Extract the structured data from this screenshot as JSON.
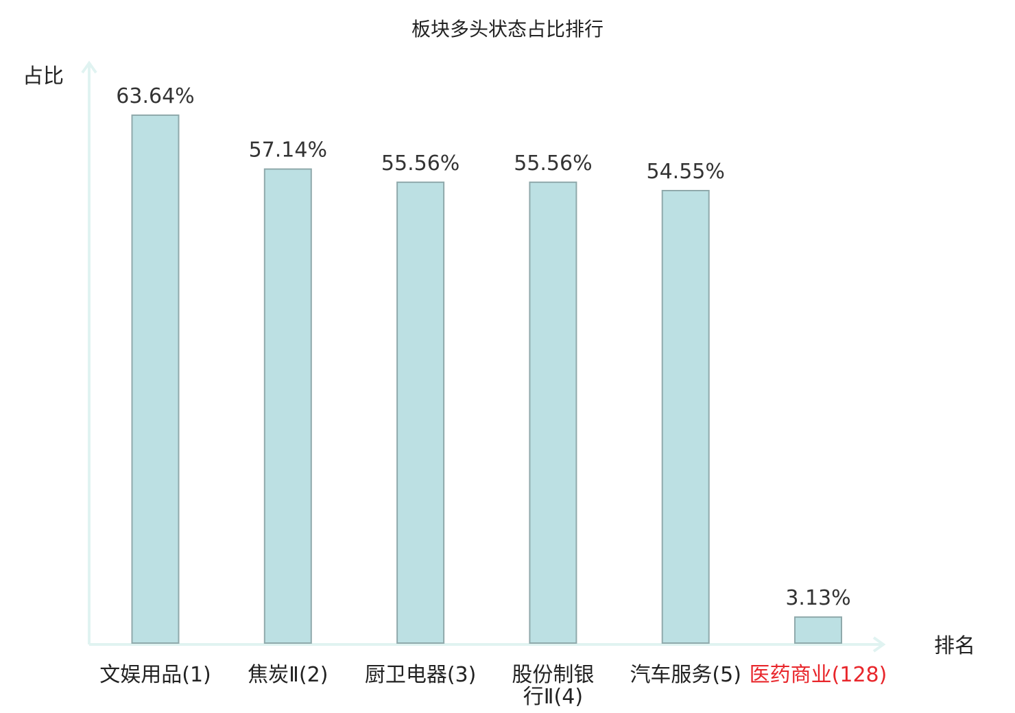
{
  "chart_data": {
    "type": "bar",
    "title": "板块多头状态占比排行",
    "ylabel": "占比",
    "xlabel": "排名",
    "ylim": [
      0,
      70
    ],
    "grid": false,
    "categories": [
      {
        "name": "文娱用品",
        "rank": "(1)",
        "highlight": false
      },
      {
        "name": "焦炭Ⅱ",
        "rank": "(2)",
        "highlight": false
      },
      {
        "name": "厨卫电器",
        "rank": "(3)",
        "highlight": false
      },
      {
        "name": "股份制银",
        "name2": "行Ⅱ",
        "rank": "(4)",
        "highlight": false
      },
      {
        "name": "汽车服务",
        "rank": "(5)",
        "highlight": false
      },
      {
        "name": "医药商业",
        "rank": "(128)",
        "highlight": true
      }
    ],
    "values": [
      63.64,
      57.14,
      55.56,
      55.56,
      54.55,
      3.13
    ],
    "value_labels": [
      "63.64%",
      "57.14%",
      "55.56%",
      "55.56%",
      "54.55%",
      "3.13%"
    ]
  },
  "colors": {
    "bar_fill": "#bce0e3",
    "bar_stroke": "#8fa9ab",
    "axis": "#e0f3f1",
    "text": "#222222",
    "highlight": "#e8262b"
  }
}
